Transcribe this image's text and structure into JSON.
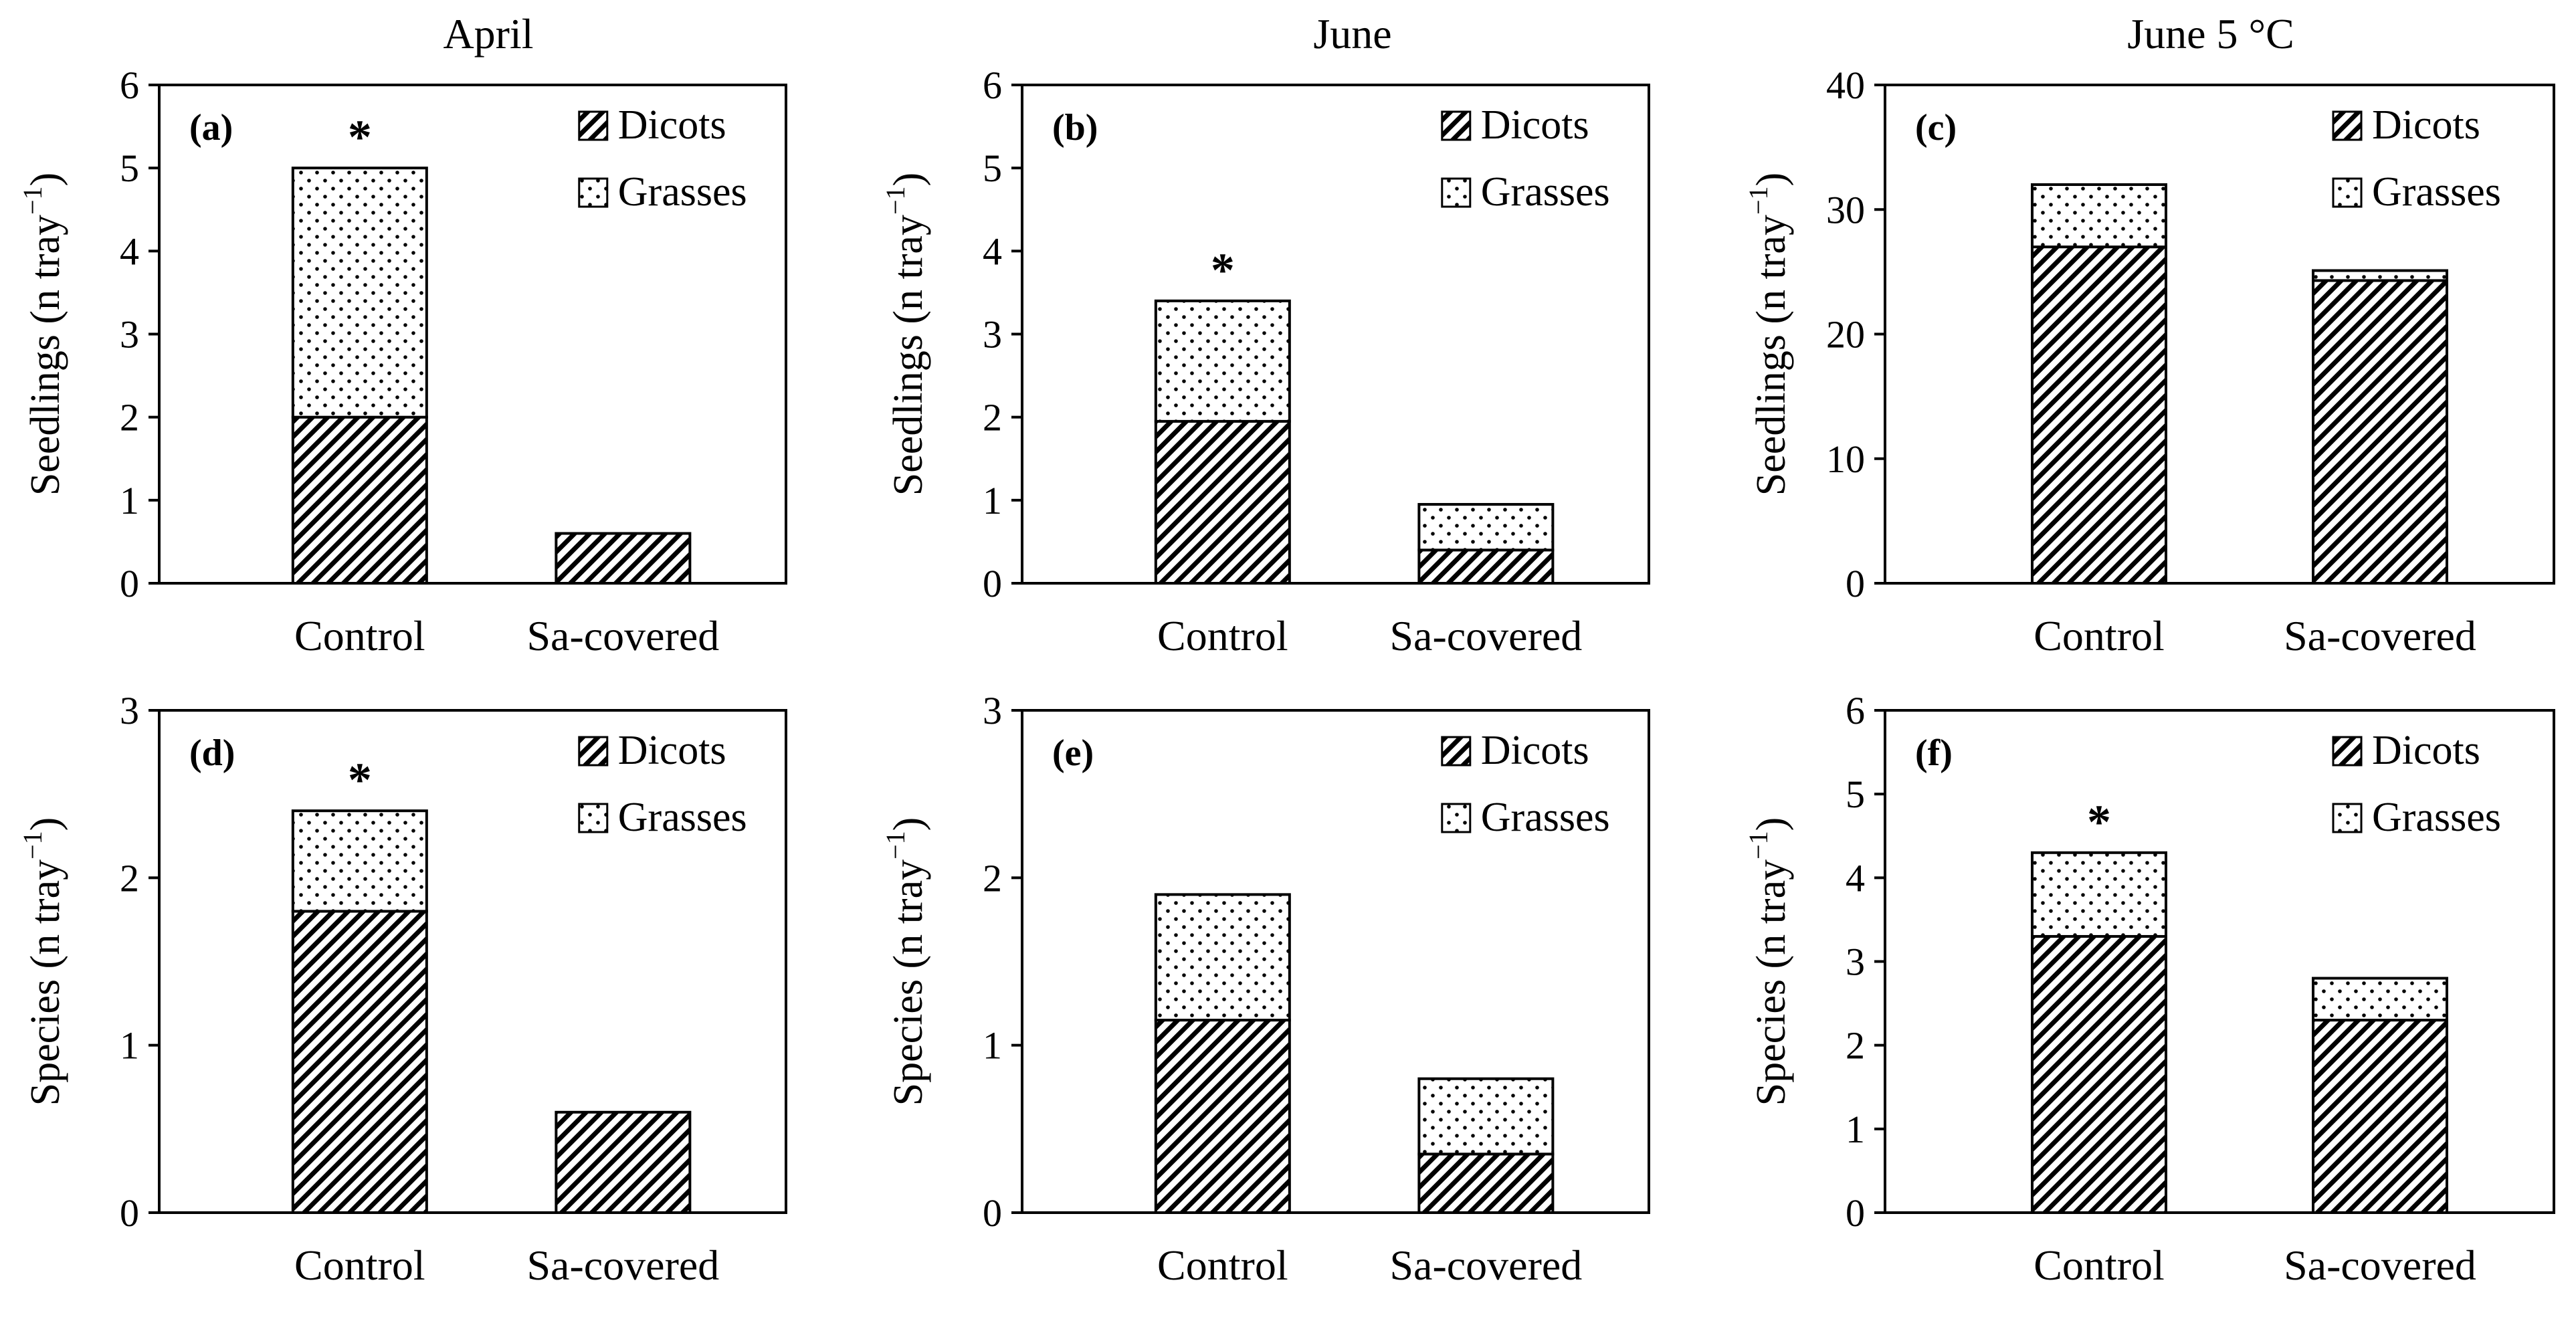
{
  "column_titles": [
    "April",
    "June",
    "June 5 °C"
  ],
  "legend": {
    "dicots": "Dicots",
    "grasses": "Grasses"
  },
  "colors": {
    "ink": "#000000",
    "background": "#ffffff"
  },
  "chart_data": [
    {
      "type": "bar",
      "stacked": true,
      "panel": "(a)",
      "title": "April",
      "categories": [
        "Control",
        "Sa-covered"
      ],
      "series": [
        {
          "name": "Dicots",
          "values": [
            2.0,
            0.6
          ],
          "pattern": "hatch"
        },
        {
          "name": "Grasses",
          "values": [
            3.0,
            0.0
          ],
          "pattern": "dots"
        }
      ],
      "ylabel": "Seedlings (n tray",
      "ylabel_sup": "−1",
      "ylabel_tail": ")",
      "ylim": [
        0,
        6
      ],
      "yticks": [
        0,
        1,
        2,
        3,
        4,
        5,
        6
      ],
      "significance": [
        "*",
        ""
      ],
      "legend_position": "top-right"
    },
    {
      "type": "bar",
      "stacked": true,
      "panel": "(b)",
      "title": "June",
      "categories": [
        "Control",
        "Sa-covered"
      ],
      "series": [
        {
          "name": "Dicots",
          "values": [
            1.95,
            0.4
          ],
          "pattern": "hatch"
        },
        {
          "name": "Grasses",
          "values": [
            1.45,
            0.55
          ],
          "pattern": "dots"
        }
      ],
      "ylabel": "Seedlings (n tray",
      "ylabel_sup": "−1",
      "ylabel_tail": ")",
      "ylim": [
        0,
        6
      ],
      "yticks": [
        0,
        1,
        2,
        3,
        4,
        5,
        6
      ],
      "significance": [
        "*",
        ""
      ],
      "legend_position": "top-right"
    },
    {
      "type": "bar",
      "stacked": true,
      "panel": "(c)",
      "title": "June 5 °C",
      "categories": [
        "Control",
        "Sa-covered"
      ],
      "series": [
        {
          "name": "Dicots",
          "values": [
            27.0,
            24.3
          ],
          "pattern": "hatch"
        },
        {
          "name": "Grasses",
          "values": [
            5.0,
            0.8
          ],
          "pattern": "dots"
        }
      ],
      "ylabel": "Seedlings (n tray",
      "ylabel_sup": "−1",
      "ylabel_tail": ")",
      "ylim": [
        0,
        40
      ],
      "yticks": [
        0,
        10,
        20,
        30,
        40
      ],
      "significance": [
        "",
        ""
      ],
      "legend_position": "top-right"
    },
    {
      "type": "bar",
      "stacked": true,
      "panel": "(d)",
      "categories": [
        "Control",
        "Sa-covered"
      ],
      "series": [
        {
          "name": "Dicots",
          "values": [
            1.8,
            0.6
          ],
          "pattern": "hatch"
        },
        {
          "name": "Grasses",
          "values": [
            0.6,
            0.0
          ],
          "pattern": "dots"
        }
      ],
      "ylabel": "Species (n tray",
      "ylabel_sup": "−1",
      "ylabel_tail": ")",
      "ylim": [
        0,
        3
      ],
      "yticks": [
        0,
        1,
        2,
        3
      ],
      "significance": [
        "*",
        ""
      ],
      "legend_position": "top-right"
    },
    {
      "type": "bar",
      "stacked": true,
      "panel": "(e)",
      "categories": [
        "Control",
        "Sa-covered"
      ],
      "series": [
        {
          "name": "Dicots",
          "values": [
            1.15,
            0.35
          ],
          "pattern": "hatch"
        },
        {
          "name": "Grasses",
          "values": [
            0.75,
            0.45
          ],
          "pattern": "dots"
        }
      ],
      "ylabel": "Species (n tray",
      "ylabel_sup": "−1",
      "ylabel_tail": ")",
      "ylim": [
        0,
        3
      ],
      "yticks": [
        0,
        1,
        2,
        3
      ],
      "significance": [
        "",
        ""
      ],
      "legend_position": "top-right"
    },
    {
      "type": "bar",
      "stacked": true,
      "panel": "(f)",
      "categories": [
        "Control",
        "Sa-covered"
      ],
      "series": [
        {
          "name": "Dicots",
          "values": [
            3.3,
            2.3
          ],
          "pattern": "hatch"
        },
        {
          "name": "Grasses",
          "values": [
            1.0,
            0.5
          ],
          "pattern": "dots"
        }
      ],
      "ylabel": "Species (n tray",
      "ylabel_sup": "−1",
      "ylabel_tail": ")",
      "ylim": [
        0,
        6
      ],
      "yticks": [
        0,
        1,
        2,
        3,
        4,
        5,
        6
      ],
      "significance": [
        "*",
        ""
      ],
      "legend_position": "top-right"
    }
  ]
}
